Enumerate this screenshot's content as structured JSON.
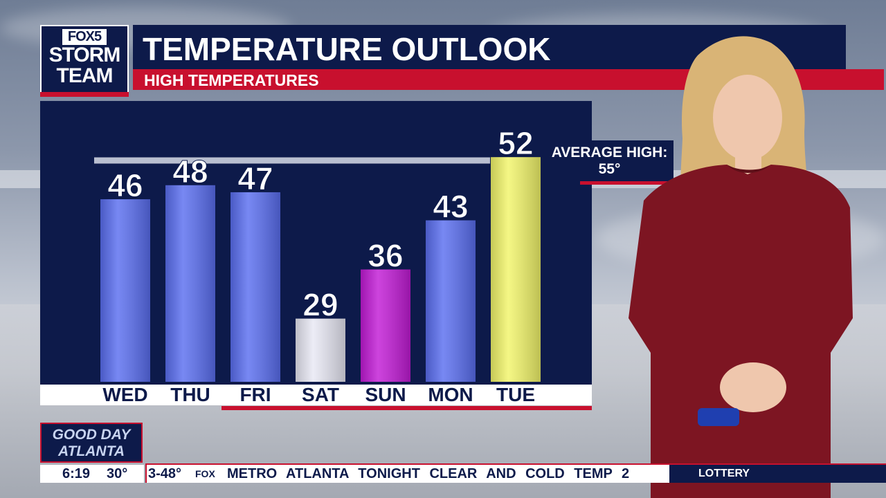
{
  "branding": {
    "logo_top": "FOX5",
    "logo_mid": "STORM",
    "logo_bottom": "TEAM",
    "show_line1": "GOOD DAY",
    "show_line2": "ATLANTA"
  },
  "header": {
    "title": "TEMPERATURE OUTLOOK",
    "subtitle": "HIGH TEMPERATURES"
  },
  "average": {
    "line1": "AVERAGE HIGH:",
    "line2": "55°",
    "value": 55
  },
  "chart_data": {
    "type": "bar",
    "categories": [
      "WED",
      "THU",
      "FRI",
      "SAT",
      "SUN",
      "MON",
      "TUE"
    ],
    "values": [
      46,
      48,
      47,
      29,
      36,
      43,
      52
    ],
    "value_labels": [
      "46",
      "48",
      "47",
      "29",
      "36",
      "43",
      "52"
    ],
    "reference_line": 55,
    "title": "TEMPERATURE OUTLOOK",
    "subtitle": "HIGH TEMPERATURES",
    "colors": [
      "#5a6ef0",
      "#5a6ef0",
      "#5a6ef0",
      "#e8e8f4",
      "#c21bd6",
      "#5a6ef0",
      "#f2f56a"
    ],
    "grid": false,
    "legend": "none"
  },
  "colors": {
    "navy": "#0d1a4a",
    "red": "#c8102e",
    "blue_bar": "#5a6ef0",
    "cold_bar": "#e8e8f4",
    "purple_bar": "#c21bd6",
    "yellow_bar": "#f2f56a"
  },
  "lower_third": {
    "time": "6:19",
    "temp": "30°",
    "ticker_prefix": "3-48°",
    "ticker_brand": "FOX",
    "ticker_text": "METRO ATLANTA TONIGHT CLEAR AND COLD TEMP 2",
    "right_label": "LOTTERY"
  }
}
